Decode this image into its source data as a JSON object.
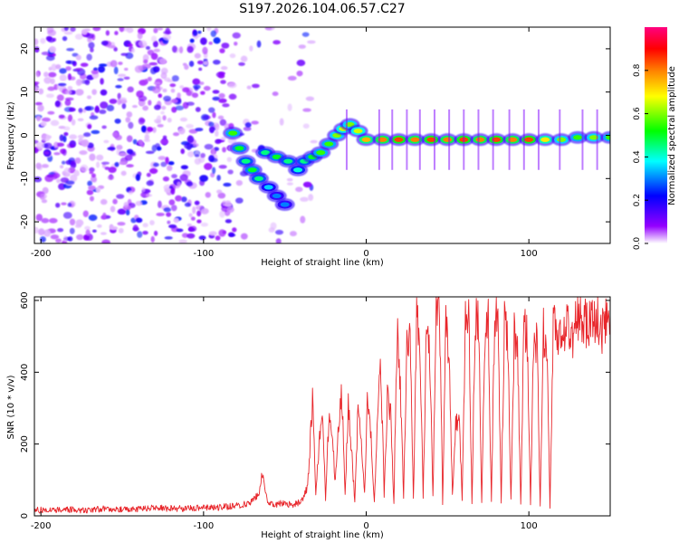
{
  "title": "S197.2026.104.06.57.C27",
  "colors": {
    "line": "#e8262b",
    "spectro_bg_low": "#c9a8ff",
    "spectro_mid": "#6a00e8"
  },
  "chart_data": [
    {
      "type": "heatmap",
      "name": "spectrogram",
      "xlabel": "Height of straight line (km)",
      "ylabel": "Frequency (Hz)",
      "xlim": [
        -204,
        150
      ],
      "ylim": [
        -25,
        25
      ],
      "xticks": [
        -200,
        -100,
        0,
        100
      ],
      "yticks": [
        -20,
        -10,
        0,
        10,
        20
      ],
      "xtick_labels": [
        "-200",
        "-100",
        "0",
        "100"
      ],
      "ytick_labels": [
        "-20",
        "-10",
        "0",
        "10",
        "20"
      ],
      "colorbar": {
        "label": "Normalized spectral amplitude",
        "range": [
          0,
          1
        ],
        "ticks": [
          0.0,
          0.2,
          0.4,
          0.6,
          0.8
        ],
        "tick_labels": [
          "0.0",
          "0.2",
          "0.4",
          "0.6",
          "0.8"
        ],
        "stops": [
          "#ffffff",
          "#9400ff",
          "#0000ff",
          "#00ffff",
          "#00ff00",
          "#ffff00",
          "#ff8000",
          "#ff0000",
          "#ff0080"
        ]
      },
      "noise_region_x": [
        -204,
        -82
      ],
      "signal_track": [
        {
          "x": -82,
          "y": 0.5,
          "v": 0.55
        },
        {
          "x": -78,
          "y": -3,
          "v": 0.5
        },
        {
          "x": -74,
          "y": -6,
          "v": 0.45
        },
        {
          "x": -70,
          "y": -8,
          "v": 0.5
        },
        {
          "x": -66,
          "y": -10,
          "v": 0.45
        },
        {
          "x": -60,
          "y": -12,
          "v": 0.35
        },
        {
          "x": -55,
          "y": -14,
          "v": 0.3
        },
        {
          "x": -50,
          "y": -16,
          "v": 0.3
        },
        {
          "x": -62,
          "y": -4,
          "v": 0.45
        },
        {
          "x": -55,
          "y": -5,
          "v": 0.5
        },
        {
          "x": -48,
          "y": -6,
          "v": 0.45
        },
        {
          "x": -42,
          "y": -8,
          "v": 0.4
        },
        {
          "x": -38,
          "y": -6,
          "v": 0.45
        },
        {
          "x": -33,
          "y": -5,
          "v": 0.5
        },
        {
          "x": -28,
          "y": -4,
          "v": 0.55
        },
        {
          "x": -23,
          "y": -2,
          "v": 0.55
        },
        {
          "x": -18,
          "y": 0,
          "v": 0.6
        },
        {
          "x": -14,
          "y": 1.5,
          "v": 0.65
        },
        {
          "x": -10,
          "y": 2.5,
          "v": 0.6
        },
        {
          "x": -5,
          "y": 1,
          "v": 0.65
        },
        {
          "x": 0,
          "y": -1,
          "v": 0.75
        },
        {
          "x": 10,
          "y": -1,
          "v": 0.8
        },
        {
          "x": 20,
          "y": -1,
          "v": 0.85
        },
        {
          "x": 30,
          "y": -1,
          "v": 0.8
        },
        {
          "x": 40,
          "y": -1,
          "v": 0.85
        },
        {
          "x": 50,
          "y": -1,
          "v": 0.8
        },
        {
          "x": 60,
          "y": -1,
          "v": 0.85
        },
        {
          "x": 70,
          "y": -1,
          "v": 0.8
        },
        {
          "x": 80,
          "y": -1,
          "v": 0.85
        },
        {
          "x": 90,
          "y": -1,
          "v": 0.8
        },
        {
          "x": 100,
          "y": -1,
          "v": 0.85
        },
        {
          "x": 110,
          "y": -1,
          "v": 0.7
        },
        {
          "x": 120,
          "y": -1,
          "v": 0.6
        },
        {
          "x": 130,
          "y": -0.5,
          "v": 0.55
        },
        {
          "x": 140,
          "y": -0.5,
          "v": 0.6
        },
        {
          "x": 150,
          "y": -0.5,
          "v": 0.55
        }
      ]
    },
    {
      "type": "line",
      "name": "snr",
      "xlabel": "Height of straight line (km)",
      "ylabel": "SNR (10 * v/v)",
      "xlim": [
        -204,
        150
      ],
      "ylim": [
        0,
        610
      ],
      "xticks": [
        -200,
        -100,
        0,
        100
      ],
      "yticks": [
        0,
        200,
        400,
        600
      ],
      "xtick_labels": [
        "-200",
        "-100",
        "0",
        "100"
      ],
      "ytick_labels": [
        "0",
        "200",
        "400",
        "600"
      ],
      "series": [
        {
          "name": "SNR",
          "x": [
            -204,
            -190,
            -175,
            -160,
            -145,
            -130,
            -115,
            -100,
            -90,
            -80,
            -72,
            -66,
            -64,
            -61,
            -58,
            -52,
            -46,
            -40,
            -36,
            -33,
            -31,
            -29,
            -27,
            -25,
            -23,
            -21,
            -19,
            -17,
            -15,
            -13,
            -11,
            -9,
            -7,
            -5,
            -3,
            -1,
            1,
            3,
            5,
            7,
            9,
            11,
            13,
            15,
            17,
            19,
            21,
            23,
            25,
            27,
            29,
            31,
            33,
            35,
            37,
            39,
            41,
            43,
            45,
            47,
            49,
            51,
            53,
            55,
            57,
            59,
            61,
            63,
            65,
            67,
            69,
            71,
            73,
            75,
            77,
            79,
            81,
            83,
            85,
            87,
            89,
            91,
            93,
            95,
            97,
            99,
            101,
            103,
            105,
            107,
            109,
            111,
            113,
            115,
            118,
            121,
            124,
            127,
            130,
            133,
            136,
            139,
            142,
            145,
            148,
            150
          ],
          "values": [
            15,
            18,
            16,
            20,
            18,
            22,
            20,
            22,
            24,
            28,
            35,
            60,
            120,
            45,
            30,
            35,
            30,
            40,
            80,
            320,
            60,
            200,
            320,
            40,
            280,
            230,
            90,
            250,
            340,
            60,
            300,
            180,
            40,
            300,
            200,
            60,
            350,
            210,
            40,
            280,
            420,
            60,
            320,
            280,
            30,
            520,
            360,
            50,
            480,
            500,
            40,
            540,
            480,
            50,
            520,
            470,
            50,
            560,
            590,
            40,
            520,
            480,
            60,
            250,
            300,
            40,
            540,
            580,
            30,
            560,
            540,
            40,
            500,
            530,
            40,
            560,
            520,
            30,
            550,
            500,
            40,
            510,
            480,
            30,
            540,
            490,
            30,
            520,
            470,
            30,
            520,
            470,
            30,
            540,
            470,
            520,
            550,
            500,
            560,
            520,
            540,
            530,
            560,
            520,
            550,
            530
          ]
        }
      ]
    }
  ]
}
